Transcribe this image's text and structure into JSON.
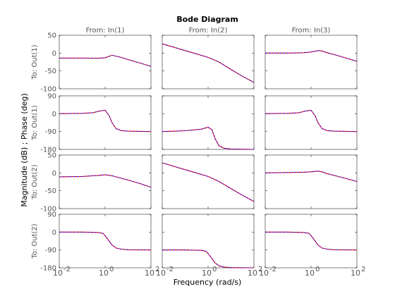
{
  "chart_data": {
    "type": "line",
    "title": "Bode Diagram",
    "xlabel": "Frequency  (rad/s)",
    "ylabel": "Magnitude (dB) ; Phase (deg)",
    "x_scale": "log",
    "x_ticks": [
      0.01,
      1,
      100
    ],
    "x_tick_labels": [
      [
        "10",
        "-2"
      ],
      [
        "10",
        "0"
      ],
      [
        "10",
        "2"
      ]
    ],
    "xlim": [
      0.01,
      100
    ],
    "columns": [
      "From: In(1)",
      "From: In(2)",
      "From: In(3)"
    ],
    "rows": [
      {
        "label": "To: Out(1)",
        "kind": "magnitude",
        "ylim": [
          -100,
          50
        ],
        "yticks": [
          50,
          0,
          -50,
          -100
        ],
        "ytick_labels": [
          "50",
          "0",
          "-50",
          "-100"
        ]
      },
      {
        "label": "To: Out(1)",
        "kind": "phase",
        "ylim": [
          -180,
          90
        ],
        "yticks": [
          90,
          0,
          -90,
          -180
        ],
        "ytick_labels": [
          "90",
          "0",
          "-90",
          "-180"
        ]
      },
      {
        "label": "To: Out(2)",
        "kind": "magnitude",
        "ylim": [
          -100,
          50
        ],
        "yticks": [
          50,
          0,
          -50,
          -100
        ],
        "ytick_labels": [
          "50",
          "0",
          "-50",
          "-100"
        ]
      },
      {
        "label": "To: Out(2)",
        "kind": "phase",
        "ylim": [
          -180,
          90
        ],
        "yticks": [
          90,
          0,
          -90,
          -180
        ],
        "ytick_labels": [
          "90",
          "0",
          "-90",
          "-180"
        ]
      }
    ],
    "series_colors": [
      "#0000ff",
      "#ff0000"
    ],
    "panels": [
      {
        "row": 0,
        "col": 0,
        "x": [
          0.01,
          0.1,
          0.5,
          1,
          2,
          5,
          10,
          30,
          100
        ],
        "y": [
          -14,
          -14,
          -14.5,
          -13,
          -6,
          -12,
          -18,
          -27,
          -37
        ]
      },
      {
        "row": 0,
        "col": 1,
        "x": [
          0.01,
          0.03,
          0.1,
          0.3,
          1,
          3,
          10,
          30,
          100
        ],
        "y": [
          26,
          17,
          7,
          -2,
          -12,
          -25,
          -46,
          -64,
          -82
        ]
      },
      {
        "row": 0,
        "col": 2,
        "x": [
          0.01,
          0.1,
          0.5,
          1,
          2,
          3,
          5,
          10,
          30,
          100
        ],
        "y": [
          0,
          0,
          1,
          3,
          7,
          6,
          1,
          -4,
          -13,
          -23
        ]
      },
      {
        "row": 1,
        "col": 0,
        "x": [
          0.01,
          0.1,
          0.3,
          0.6,
          1,
          1.5,
          2,
          3,
          5,
          10,
          100
        ],
        "y": [
          0,
          2,
          5,
          14,
          18,
          -10,
          -45,
          -75,
          -85,
          -88,
          -90
        ]
      },
      {
        "row": 1,
        "col": 1,
        "x": [
          0.01,
          0.1,
          0.5,
          1,
          1.5,
          2,
          3,
          5,
          10,
          100
        ],
        "y": [
          -90,
          -86,
          -78,
          -68,
          -82,
          -125,
          -162,
          -174,
          -178,
          -180
        ]
      },
      {
        "row": 1,
        "col": 2,
        "x": [
          0.01,
          0.1,
          0.3,
          0.6,
          1,
          1.5,
          2,
          3,
          5,
          10,
          100
        ],
        "y": [
          0,
          2,
          5,
          14,
          17,
          -10,
          -45,
          -75,
          -85,
          -88,
          -90
        ]
      },
      {
        "row": 2,
        "col": 0,
        "x": [
          0.01,
          0.1,
          0.5,
          1,
          2,
          5,
          10,
          30,
          100
        ],
        "y": [
          -11,
          -10,
          -7,
          -5,
          -8,
          -15,
          -20,
          -29,
          -40
        ]
      },
      {
        "row": 2,
        "col": 1,
        "x": [
          0.01,
          0.03,
          0.1,
          0.3,
          1,
          3,
          10,
          30,
          100
        ],
        "y": [
          28,
          19,
          9,
          0,
          -10,
          -24,
          -44,
          -62,
          -80
        ]
      },
      {
        "row": 2,
        "col": 2,
        "x": [
          0.01,
          0.1,
          0.5,
          1,
          2,
          3,
          5,
          10,
          30,
          100
        ],
        "y": [
          0,
          1,
          2,
          3,
          5,
          3,
          -2,
          -7,
          -15,
          -24
        ]
      },
      {
        "row": 3,
        "col": 0,
        "x": [
          0.01,
          0.1,
          0.5,
          0.8,
          1,
          1.5,
          2,
          3,
          5,
          10,
          100
        ],
        "y": [
          0,
          0,
          -2,
          -6,
          -18,
          -45,
          -65,
          -80,
          -86,
          -89,
          -90
        ]
      },
      {
        "row": 3,
        "col": 1,
        "x": [
          0.01,
          0.1,
          0.5,
          0.8,
          1,
          1.5,
          2,
          3,
          5,
          10,
          100
        ],
        "y": [
          -90,
          -90,
          -92,
          -96,
          -108,
          -135,
          -155,
          -170,
          -176,
          -179,
          -180
        ]
      },
      {
        "row": 3,
        "col": 2,
        "x": [
          0.01,
          0.1,
          0.5,
          0.8,
          1,
          1.5,
          2,
          3,
          5,
          10,
          100
        ],
        "y": [
          0,
          0,
          -2,
          -6,
          -18,
          -45,
          -65,
          -80,
          -86,
          -89,
          -90
        ]
      }
    ]
  }
}
